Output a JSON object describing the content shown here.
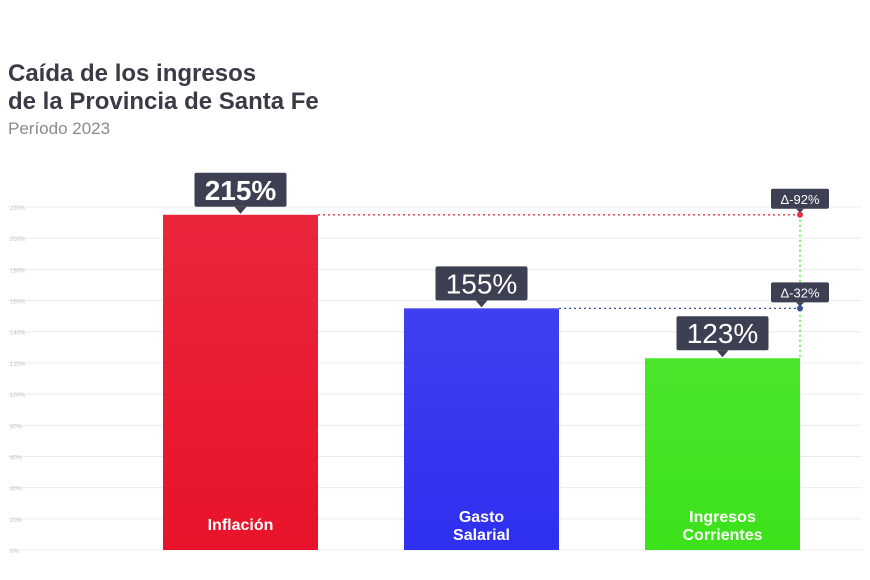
{
  "header": {
    "title_line1": "Caída de los ingresos",
    "title_line2": "de la Provincia de Santa Fe",
    "subtitle": "Período 2023"
  },
  "chart_data": {
    "type": "bar",
    "title": "Caída de los ingresos de la Provincia de Santa Fe",
    "subtitle": "Período 2023",
    "categories": [
      [
        "Inflación"
      ],
      [
        "Gasto",
        "Salarial"
      ],
      [
        "Ingresos",
        "Corrientes"
      ]
    ],
    "values": [
      215,
      155,
      123
    ],
    "value_labels": [
      "215%",
      "155%",
      "123%"
    ],
    "colors": [
      "#e8132a",
      "#2f2ff0",
      "#3ce21a"
    ],
    "ylim": [
      0,
      220
    ],
    "yticks": [
      0,
      20,
      40,
      60,
      80,
      100,
      120,
      140,
      160,
      180,
      200,
      220
    ],
    "ytick_labels": [
      "0%",
      "20%",
      "40%",
      "60%",
      "80%",
      "100%",
      "120%",
      "140%",
      "160%",
      "180%",
      "200%",
      "220%"
    ],
    "grid": true,
    "annotations": [
      {
        "label": "Δ-92%",
        "from": 215,
        "to": 123,
        "color": "#e0334a"
      },
      {
        "label": "Δ-32%",
        "from": 155,
        "to": 123,
        "color": "#3a4fa0"
      }
    ]
  }
}
